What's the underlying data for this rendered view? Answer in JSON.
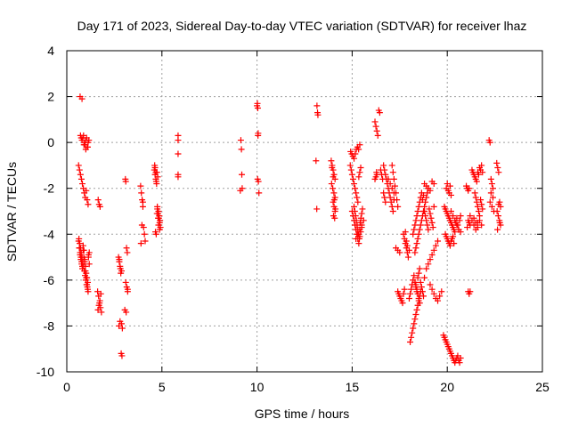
{
  "chart_data": {
    "type": "scatter",
    "title": "Day 171 of 2023, Sidereal Day-to-day VTEC variation (SDTVAR) for receiver lhaz",
    "xlabel": "GPS time / hours",
    "ylabel": "SDTVAR / TECUs",
    "xlim": [
      0,
      25
    ],
    "ylim": [
      -10,
      4
    ],
    "xticks": [
      0,
      5,
      10,
      15,
      20,
      25
    ],
    "yticks": [
      -10,
      -8,
      -6,
      -4,
      -2,
      0,
      2,
      4
    ],
    "grid": true,
    "marker": "+",
    "color": "#ff0000",
    "series": [
      {
        "name": "SDTVAR",
        "x": [
          0.62,
          0.67,
          0.72,
          0.77,
          0.82,
          0.87,
          0.92,
          0.97,
          1.02,
          1.07,
          1.12,
          0.72,
          0.76,
          0.8,
          0.84,
          0.88,
          0.92,
          0.96,
          1.0,
          1.04,
          1.08,
          1.12,
          1.16,
          0.62,
          0.66,
          0.7,
          0.74,
          0.78,
          0.82,
          0.86,
          0.9,
          0.94,
          0.98,
          1.02,
          1.06,
          1.1,
          1.14,
          1.18,
          0.64,
          0.68,
          0.72,
          0.76,
          0.8,
          0.84,
          0.88,
          0.92,
          0.96,
          1.0,
          1.04,
          1.08,
          1.12,
          0.7,
          0.8,
          0.9,
          1.0,
          1.1,
          0.66,
          0.7,
          0.74,
          0.78,
          0.82,
          0.86,
          0.9,
          0.94,
          0.98,
          1.02,
          1.06,
          1.1,
          1.14,
          1.18,
          1.65,
          1.7,
          1.75,
          1.62,
          1.67,
          1.72,
          1.77,
          1.82,
          1.64,
          1.69,
          1.74,
          1.79,
          2.72,
          2.76,
          2.8,
          2.84,
          2.88,
          2.92,
          2.74,
          2.8,
          2.86,
          2.9,
          2.76,
          2.82,
          2.88,
          3.08,
          3.1,
          3.14,
          3.18,
          3.1,
          3.15,
          3.2,
          3.05,
          3.12,
          3.2,
          3.88,
          3.92,
          3.96,
          4.0,
          4.04,
          4.08,
          4.12,
          3.9,
          3.95,
          4.0,
          4.6,
          4.64,
          4.68,
          4.72,
          4.76,
          4.8,
          4.84,
          4.88,
          4.92,
          4.66,
          4.7,
          4.74,
          4.78,
          4.82,
          4.86,
          4.9,
          4.64,
          4.7,
          4.76,
          4.82,
          4.88,
          4.62,
          4.68,
          4.74,
          4.8,
          5.85,
          5.85,
          5.85,
          5.85,
          5.85,
          9.15,
          9.18,
          9.2,
          9.22,
          9.12,
          10.0,
          10.02,
          10.04,
          10.06,
          10.05,
          10.03,
          10.07,
          10.1,
          13.15,
          13.18,
          13.2,
          13.1,
          13.14,
          13.9,
          13.95,
          14.0,
          14.05,
          14.1,
          13.92,
          13.98,
          14.04,
          14.1,
          14.0,
          14.05,
          14.1,
          13.94,
          14.0,
          14.06,
          14.12,
          14.02,
          14.08,
          14.9,
          14.95,
          15.0,
          15.05,
          15.1,
          15.15,
          15.2,
          15.25,
          15.3,
          15.35,
          15.4,
          15.45,
          14.92,
          14.98,
          15.04,
          15.1,
          15.16,
          15.22,
          15.28,
          15.34,
          15.4,
          15.0,
          15.05,
          15.1,
          15.15,
          15.2,
          15.25,
          15.3,
          15.35,
          15.4,
          15.45,
          15.5,
          15.1,
          15.14,
          15.18,
          15.22,
          15.26,
          15.3,
          15.34,
          15.38,
          15.42,
          15.46,
          15.5,
          15.54,
          15.2,
          15.3,
          15.4,
          15.5,
          15.6,
          16.2,
          16.25,
          16.3,
          16.35,
          16.25,
          16.3,
          16.2,
          16.28,
          16.4,
          16.45,
          16.5,
          16.55,
          16.6,
          16.65,
          16.7,
          16.75,
          16.65,
          16.7,
          16.75,
          16.8,
          16.85,
          16.9,
          16.95,
          17.0,
          17.05,
          17.1,
          17.15,
          17.2,
          16.9,
          17.0,
          17.1,
          17.2,
          17.3,
          17.4,
          17.5,
          17.1,
          17.15,
          17.2,
          17.25,
          17.3,
          17.35,
          17.4,
          17.7,
          17.75,
          17.8,
          17.85,
          17.9,
          17.95,
          18.0,
          17.8,
          17.85,
          17.9,
          17.4,
          17.45,
          17.5,
          17.55,
          17.6,
          17.65,
          17.7,
          17.75,
          18.0,
          18.05,
          18.1,
          18.15,
          18.2,
          18.25,
          18.3,
          18.35,
          18.4,
          18.45,
          18.5,
          18.55,
          18.05,
          18.1,
          18.15,
          18.2,
          18.25,
          18.3,
          18.35,
          18.4,
          18.45,
          18.5,
          18.55,
          18.6,
          18.2,
          18.25,
          18.3,
          18.35,
          18.4,
          18.45,
          18.5,
          18.55,
          18.6,
          18.65,
          18.7,
          18.75,
          18.3,
          18.35,
          18.4,
          18.45,
          18.5,
          18.55,
          18.6,
          18.65,
          18.7,
          18.75,
          18.8,
          18.85,
          18.9,
          18.95,
          19.0,
          18.35,
          18.4,
          18.45,
          18.5,
          18.55,
          18.6,
          18.65,
          18.7,
          18.75,
          18.8,
          18.8,
          18.9,
          19.0,
          19.1,
          19.2,
          19.3,
          18.9,
          19.0,
          19.1,
          19.2,
          19.3,
          19.4,
          19.5,
          18.8,
          18.85,
          18.9,
          18.95,
          19.0,
          19.05,
          19.1,
          19.15,
          19.2,
          19.25,
          19.3,
          19.1,
          19.2,
          19.3,
          19.4,
          19.5,
          19.6,
          19.7,
          19.8,
          19.85,
          19.9,
          19.95,
          20.0,
          20.05,
          20.1,
          20.15,
          20.2,
          20.25,
          20.3,
          20.35,
          20.4,
          20.45,
          20.5,
          20.55,
          20.6,
          20.65,
          20.7,
          19.9,
          19.95,
          20.0,
          20.05,
          20.1,
          20.15,
          20.2,
          20.25,
          20.3,
          20.35,
          19.85,
          19.9,
          19.95,
          20.0,
          20.05,
          20.1,
          20.15,
          20.2,
          20.25,
          20.3,
          20.35,
          20.4,
          20.45,
          20.5,
          20.55,
          20.6,
          20.65,
          20.7,
          19.95,
          20.0,
          20.05,
          20.1,
          20.15,
          20.2,
          20.2,
          20.3,
          20.4,
          20.5,
          20.6,
          20.7,
          21.0,
          21.05,
          21.1,
          21.15,
          21.2,
          21.1,
          21.15,
          21.2,
          21.05,
          21.1,
          21.15,
          21.2,
          21.3,
          21.4,
          21.5,
          21.6,
          21.3,
          21.35,
          21.4,
          21.45,
          21.5,
          21.55,
          21.6,
          21.65,
          21.7,
          21.75,
          21.8,
          21.85,
          21.45,
          21.5,
          21.55,
          21.6,
          21.65,
          21.7,
          21.75,
          21.8,
          21.85,
          21.4,
          21.5,
          21.6,
          21.7,
          21.8,
          22.2,
          22.25,
          22.3,
          22.35,
          22.4,
          22.3,
          22.4,
          22.25,
          22.35,
          22.45,
          22.6,
          22.65,
          22.7,
          22.75,
          22.8,
          22.62,
          22.68,
          22.74,
          22.8,
          22.64,
          22.7,
          22.76
        ],
        "y": [
          -1.0,
          -1.2,
          -1.4,
          -1.6,
          -1.8,
          -2.0,
          -2.2,
          -2.4,
          -2.1,
          -2.5,
          -2.7,
          0.3,
          0.2,
          0.1,
          0.2,
          0.3,
          0.0,
          -0.1,
          0.1,
          0.2,
          -0.2,
          0.0,
          0.1,
          -4.3,
          -4.6,
          -4.8,
          -5.0,
          -5.2,
          -5.4,
          -4.5,
          -4.7,
          -5.1,
          -5.6,
          -5.9,
          -6.2,
          -6.4,
          -4.9,
          -5.3,
          -4.2,
          -4.4,
          -4.6,
          -4.8,
          -5.0,
          -5.2,
          -5.4,
          -5.6,
          -5.8,
          -6.0,
          -6.2,
          -6.3,
          -6.5,
          2.0,
          1.9,
          -0.1,
          -0.3,
          -0.2,
          -4.6,
          -4.9,
          -5.1,
          -5.3,
          -5.5,
          -4.7,
          -5.0,
          -5.2,
          -5.4,
          -5.7,
          -5.9,
          -6.1,
          -5.0,
          -4.8,
          -2.5,
          -2.7,
          -2.8,
          -6.5,
          -6.7,
          -7.0,
          -7.2,
          -7.4,
          -7.3,
          -7.1,
          -6.9,
          -6.6,
          -5.0,
          -5.2,
          -5.4,
          -5.7,
          -7.9,
          -8.1,
          -8.0,
          -7.8,
          -9.2,
          -9.3,
          -5.1,
          -5.5,
          -5.6,
          -1.6,
          -1.7,
          -4.6,
          -4.8,
          -6.1,
          -6.3,
          -6.5,
          -7.3,
          -7.4,
          -6.4,
          -1.9,
          -2.2,
          -2.5,
          -2.8,
          -3.7,
          -4.0,
          -4.3,
          -4.4,
          -3.6,
          -2.6,
          -1.2,
          -1.4,
          -1.6,
          -1.8,
          -2.9,
          -3.1,
          -3.3,
          -3.5,
          -3.7,
          -3.9,
          -4.0,
          -1.3,
          -1.5,
          -3.0,
          -3.2,
          -3.4,
          -1.1,
          -1.7,
          -2.8,
          -3.6,
          -3.8,
          -1.0,
          -1.3,
          -3.1,
          -3.3,
          0.3,
          0.1,
          -0.5,
          -1.4,
          -1.5,
          0.1,
          -0.3,
          -1.4,
          -2.0,
          -2.1,
          1.6,
          1.7,
          1.5,
          0.4,
          0.3,
          -1.6,
          -1.7,
          -2.2,
          1.6,
          1.3,
          1.2,
          -0.8,
          -2.9,
          -0.8,
          -1.0,
          -1.2,
          -1.4,
          -1.6,
          -1.8,
          -2.0,
          -2.2,
          -2.4,
          -2.6,
          -2.8,
          -3.0,
          -1.1,
          -1.5,
          -2.5,
          -2.9,
          -3.2,
          -3.3,
          -1.0,
          -1.2,
          -1.4,
          -1.6,
          -1.8,
          -2.0,
          -2.2,
          -2.4,
          -2.6,
          -1.5,
          -1.3,
          -1.1,
          -0.4,
          -0.5,
          -0.6,
          -0.7,
          -0.5,
          -0.3,
          -0.2,
          -0.3,
          -0.1,
          -3.0,
          -3.2,
          -3.4,
          -3.6,
          -3.8,
          -4.0,
          -4.2,
          -4.4,
          -4.1,
          -3.9,
          -3.7,
          -2.8,
          -3.0,
          -3.2,
          -3.4,
          -3.6,
          -3.8,
          -4.0,
          -4.2,
          -3.5,
          -3.3,
          -3.1,
          -2.9,
          -4.2,
          -4.0,
          -3.8,
          -3.6,
          -3.4,
          0.9,
          0.7,
          0.5,
          0.3,
          -1.5,
          -1.4,
          -1.6,
          -1.3,
          1.4,
          1.3,
          -1.2,
          -1.4,
          -1.6,
          -2.2,
          -2.4,
          -2.6,
          -1.0,
          -1.2,
          -1.4,
          -1.6,
          -1.8,
          -2.0,
          -2.2,
          -2.4,
          -2.6,
          -2.8,
          -3.0,
          -2.5,
          -1.6,
          -1.8,
          -2.0,
          -2.2,
          -4.6,
          -4.7,
          -4.8,
          -1.0,
          -1.3,
          -1.6,
          -1.9,
          -2.2,
          -2.5,
          -2.8,
          -4.0,
          -4.2,
          -4.4,
          -4.6,
          -4.8,
          -5.0,
          -4.7,
          -3.9,
          -4.3,
          -4.5,
          -6.5,
          -6.6,
          -6.7,
          -6.8,
          -6.9,
          -7.0,
          -6.6,
          -6.4,
          -6.8,
          -6.6,
          -6.4,
          -6.2,
          -6.0,
          -5.8,
          -6.1,
          -6.3,
          -6.5,
          -5.9,
          -5.7,
          -5.5,
          -8.7,
          -8.5,
          -8.3,
          -8.1,
          -7.9,
          -7.7,
          -7.5,
          -7.3,
          -7.1,
          -6.9,
          -6.7,
          -6.5,
          -4.0,
          -3.8,
          -3.6,
          -3.4,
          -3.2,
          -3.0,
          -2.8,
          -2.6,
          -2.4,
          -2.2,
          -2.5,
          -2.3,
          -4.8,
          -4.6,
          -4.4,
          -4.2,
          -4.0,
          -3.8,
          -3.6,
          -3.4,
          -3.2,
          -3.0,
          -2.8,
          -2.6,
          -2.4,
          -2.2,
          -2.0,
          -6.2,
          -6.4,
          -6.6,
          -6.8,
          -7.0,
          -6.1,
          -6.3,
          -6.5,
          -6.7,
          -5.9,
          -1.8,
          -1.9,
          -2.0,
          -2.1,
          -1.7,
          -1.8,
          -5.5,
          -5.3,
          -5.1,
          -4.9,
          -4.7,
          -4.5,
          -4.3,
          -3.0,
          -3.2,
          -3.4,
          -3.6,
          -3.8,
          -2.9,
          -3.1,
          -3.3,
          -3.5,
          -3.7,
          -2.8,
          -6.2,
          -6.4,
          -6.6,
          -6.8,
          -6.9,
          -6.7,
          -6.5,
          -8.4,
          -8.5,
          -8.6,
          -8.7,
          -8.8,
          -8.9,
          -9.0,
          -9.1,
          -9.2,
          -9.3,
          -9.4,
          -9.5,
          -9.6,
          -9.5,
          -9.4,
          -9.3,
          -9.5,
          -9.6,
          -9.4,
          -4.0,
          -4.1,
          -4.2,
          -4.3,
          -4.4,
          -4.5,
          -4.3,
          -4.2,
          -4.1,
          -4.4,
          -2.8,
          -2.9,
          -3.0,
          -3.1,
          -3.2,
          -3.3,
          -3.4,
          -3.5,
          -3.6,
          -3.7,
          -3.8,
          -3.9,
          -3.5,
          -3.3,
          -3.6,
          -3.8,
          -3.4,
          -3.2,
          -2.0,
          -1.8,
          -2.1,
          -2.2,
          -1.9,
          -2.3,
          -3.0,
          -3.2,
          -3.4,
          -3.6,
          -3.8,
          -3.9,
          -1.9,
          -2.0,
          -2.1,
          -3.5,
          -3.6,
          -6.5,
          -6.6,
          -6.5,
          -3.7,
          -3.4,
          -2.0,
          -3.2,
          -3.4,
          -3.6,
          -3.8,
          -3.5,
          -1.2,
          -1.3,
          -1.4,
          -1.5,
          -1.6,
          -1.7,
          -1.3,
          -1.4,
          -1.1,
          -1.2,
          -1.0,
          -1.3,
          -2.2,
          -2.4,
          -2.6,
          -2.8,
          -3.0,
          -3.2,
          -2.5,
          -2.7,
          -2.9,
          -3.3,
          -3.5,
          -3.7,
          -3.4,
          -3.6,
          0.1,
          0.0,
          -1.6,
          -1.8,
          -2.0,
          -2.2,
          -2.4,
          -2.6,
          -2.8,
          -3.0,
          -0.9,
          -1.1,
          -1.3,
          -2.6,
          -2.8,
          -3.0,
          -3.2,
          -3.4,
          -3.6,
          -3.8,
          -2.7,
          -3.5
        ]
      }
    ]
  }
}
